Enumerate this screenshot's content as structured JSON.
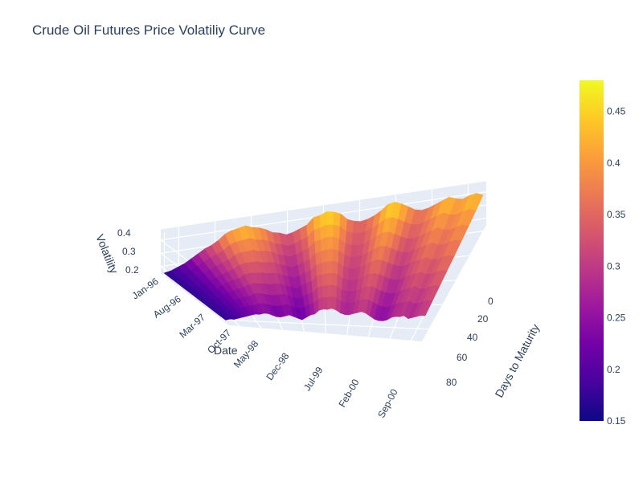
{
  "chart_data": {
    "type": "surface",
    "title": "Crude Oil Futures Price Volatiliy Curve",
    "axes": {
      "x": {
        "title": "Date",
        "ticks": [
          "Jan-96",
          "Aug-96",
          "Mar-97",
          "Oct-97",
          "May-98",
          "Dec-98",
          "Jul-99",
          "Feb-00",
          "Sep-00"
        ]
      },
      "y": {
        "title": "Days to Maturity",
        "ticks": [
          "0",
          "20",
          "40",
          "60",
          "80"
        ],
        "range": [
          0,
          90
        ]
      },
      "z": {
        "title": "Volatility",
        "ticks": [
          "0.2",
          "0.3",
          "0.4"
        ],
        "range": [
          0.15,
          0.48
        ]
      }
    },
    "colorbar": {
      "ticks": [
        "0.15",
        "0.2",
        "0.25",
        "0.3",
        "0.35",
        "0.4",
        "0.45"
      ],
      "range": [
        0.15,
        0.48
      ],
      "colorscale": [
        "#0d0887",
        "#46039f",
        "#7201a8",
        "#9c179e",
        "#bd3786",
        "#d8576b",
        "#ed7953",
        "#fb9f3a",
        "#fdca26",
        "#f0f921"
      ]
    },
    "near_maturity_volatility": [
      0.17,
      0.18,
      0.2,
      0.22,
      0.25,
      0.28,
      0.31,
      0.33,
      0.36,
      0.4,
      0.42,
      0.43,
      0.44,
      0.42,
      0.41,
      0.39,
      0.36,
      0.35,
      0.33,
      0.34,
      0.36,
      0.38,
      0.43,
      0.44,
      0.46,
      0.45,
      0.43,
      0.38,
      0.36,
      0.35,
      0.36,
      0.38,
      0.41,
      0.45,
      0.46,
      0.44,
      0.41,
      0.38,
      0.37,
      0.38,
      0.4,
      0.42,
      0.44,
      0.42,
      0.41,
      0.43,
      0.44,
      0.42
    ],
    "far_maturity_volatility": [
      0.17,
      0.18,
      0.18,
      0.19,
      0.2,
      0.21,
      0.22,
      0.23,
      0.23,
      0.24,
      0.24,
      0.23,
      0.22,
      0.22,
      0.23,
      0.24,
      0.23,
      0.22,
      0.21,
      0.23,
      0.25,
      0.26,
      0.29,
      0.3,
      0.3,
      0.31,
      0.3,
      0.28,
      0.27,
      0.27,
      0.28,
      0.29,
      0.3,
      0.29,
      0.27,
      0.25,
      0.24,
      0.24,
      0.25,
      0.27,
      0.28,
      0.28,
      0.29,
      0.27,
      0.28,
      0.29,
      0.3,
      0.3
    ],
    "grid": true
  }
}
